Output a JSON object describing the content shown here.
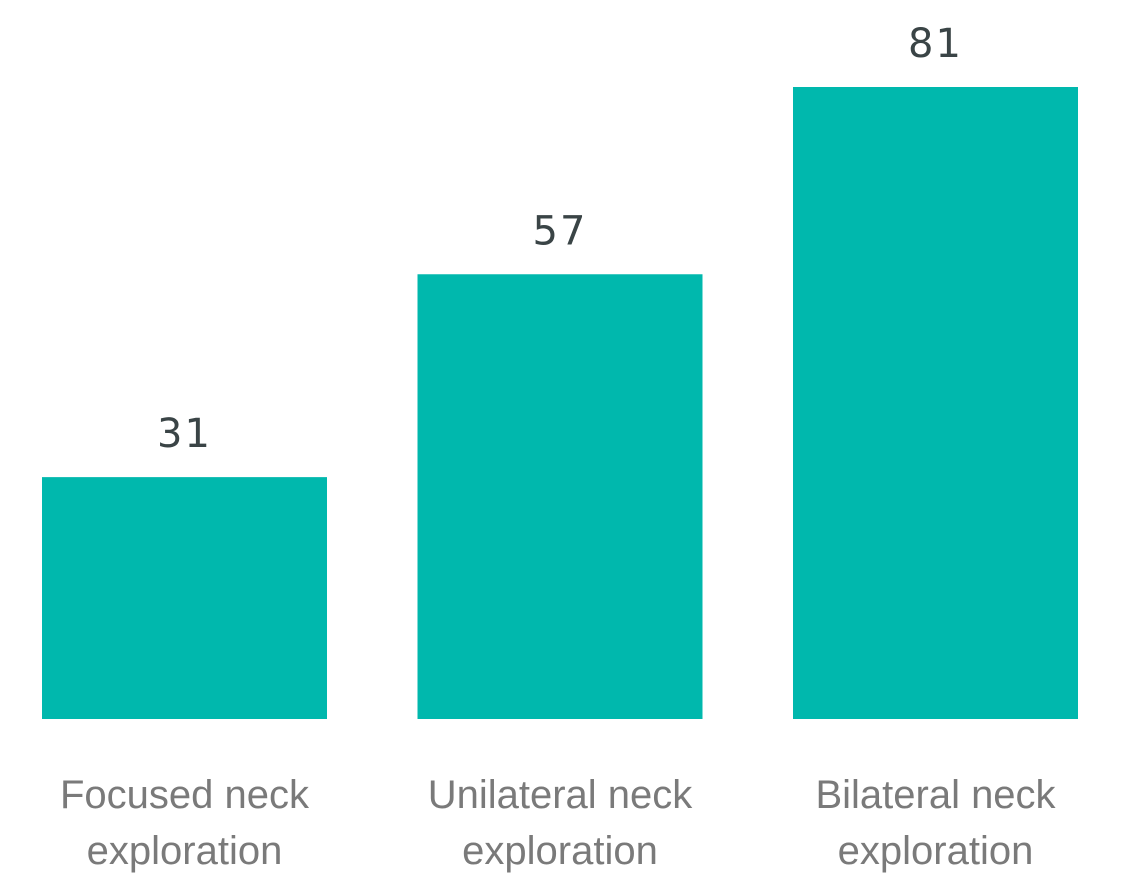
{
  "chart_data": {
    "type": "bar",
    "categories": [
      [
        "Focused neck",
        "exploration"
      ],
      [
        "Unilateral neck",
        "exploration"
      ],
      [
        "Bilateral neck",
        "exploration"
      ]
    ],
    "values": [
      31,
      57,
      81
    ],
    "value_labels": [
      "31",
      "57",
      "81"
    ],
    "bar_color": "#00b8ad",
    "ylim": [
      0,
      81
    ],
    "grid": false
  }
}
